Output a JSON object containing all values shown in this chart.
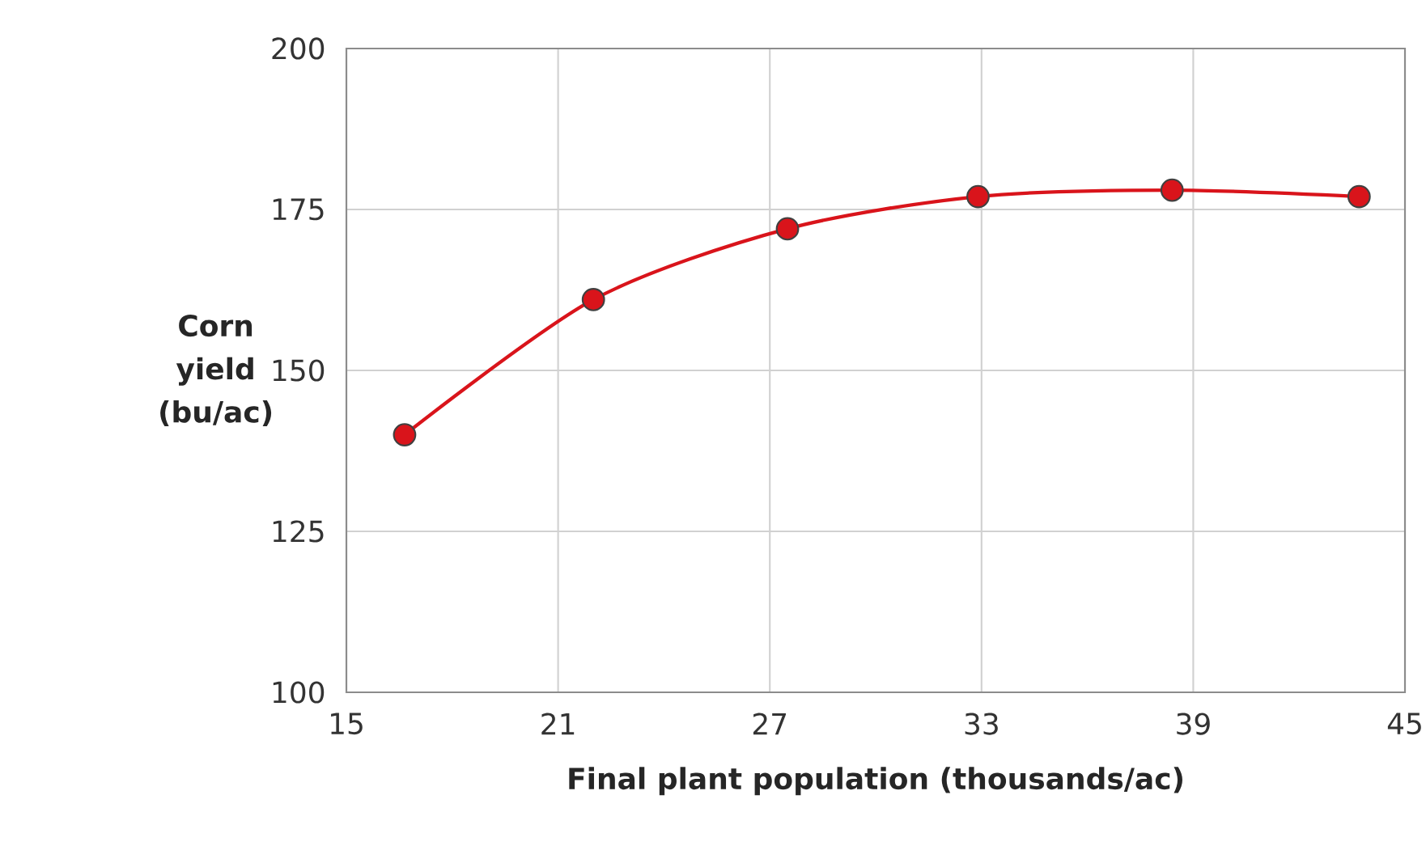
{
  "chart_data": {
    "type": "line",
    "xlabel": "Final plant population (thousands/ac)",
    "ylabel": "Corn yield (bu/ac)",
    "x": [
      16.65,
      22.0,
      27.5,
      32.9,
      38.4,
      43.7
    ],
    "series": [
      {
        "color": "#d9141b",
        "values": [
          140,
          161,
          172,
          177,
          178,
          177
        ]
      }
    ],
    "xlim": [
      15,
      45
    ],
    "xticks": [
      15,
      21,
      27,
      33,
      39,
      45
    ],
    "ylim": [
      100,
      200
    ],
    "yticks": [
      100,
      125,
      150,
      175,
      200
    ],
    "grid": true,
    "marker": "circle",
    "line_style": "solid"
  }
}
